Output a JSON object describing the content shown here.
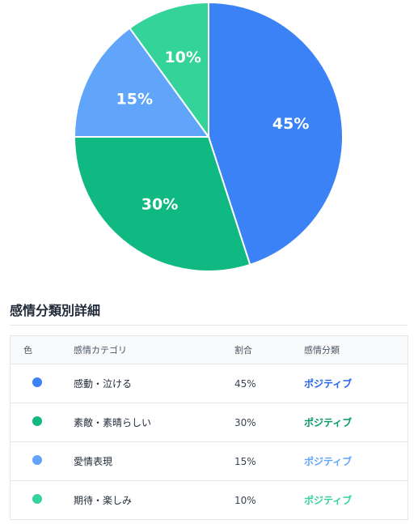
{
  "chart_data": {
    "type": "pie",
    "title": "",
    "slices": [
      {
        "label": "感動・泣ける",
        "value": 45,
        "display": "45%",
        "color": "#3B82F6"
      },
      {
        "label": "素敵・素晴らしい",
        "value": 30,
        "display": "30%",
        "color": "#10B981"
      },
      {
        "label": "愛情表現",
        "value": 15,
        "display": "15%",
        "color": "#60A5FA"
      },
      {
        "label": "期待・楽しみ",
        "value": 10,
        "display": "10%",
        "color": "#34D399"
      }
    ],
    "legend": "none",
    "start_angle": "top, clockwise"
  },
  "details": {
    "title": "感情分類別詳細",
    "headers": {
      "color": "色",
      "category": "感情カテゴリ",
      "ratio": "割合",
      "classification": "感情分類"
    },
    "rows": [
      {
        "category": "感動・泣ける",
        "ratio": "45%",
        "classification": "ポジティブ",
        "color": "#3B82F6",
        "class_color": "#2563EB"
      },
      {
        "category": "素敵・素晴らしい",
        "ratio": "30%",
        "classification": "ポジティブ",
        "color": "#10B981",
        "class_color": "#059669"
      },
      {
        "category": "愛情表現",
        "ratio": "15%",
        "classification": "ポジティブ",
        "color": "#60A5FA",
        "class_color": "#60A5FA"
      },
      {
        "category": "期待・楽しみ",
        "ratio": "10%",
        "classification": "ポジティブ",
        "color": "#34D399",
        "class_color": "#34D399"
      }
    ]
  }
}
